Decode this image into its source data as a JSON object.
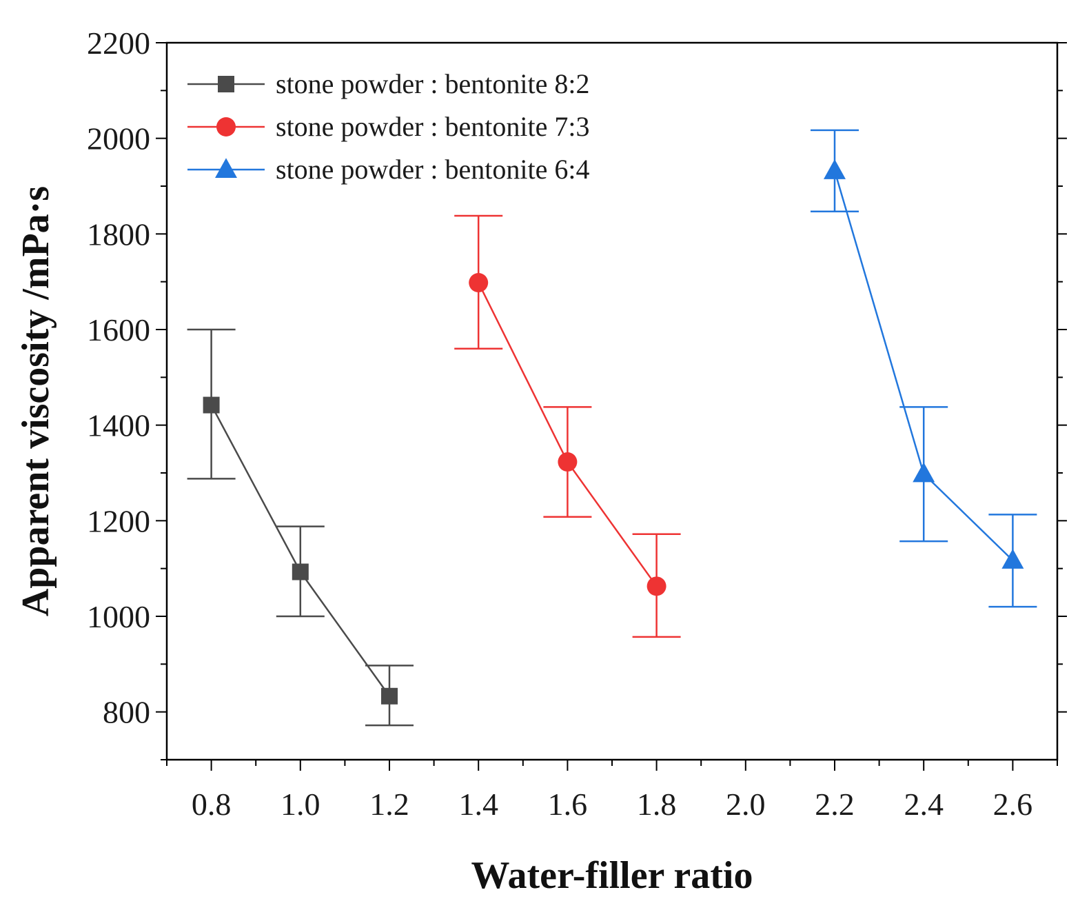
{
  "chart_data": {
    "type": "line",
    "title": "",
    "xlabel": "Water-filler ratio",
    "ylabel": "Apparent viscosity /mPa·s",
    "xlim": [
      0.7,
      2.7
    ],
    "ylim": [
      700,
      2200
    ],
    "x_ticks": [
      "0.8",
      "1.0",
      "1.2",
      "1.4",
      "1.6",
      "1.8",
      "2.0",
      "2.2",
      "2.4",
      "2.6"
    ],
    "y_ticks": [
      "800",
      "1000",
      "1200",
      "1400",
      "1600",
      "1800",
      "2000",
      "2200"
    ],
    "x_tick_values": [
      0.8,
      1.0,
      1.2,
      1.4,
      1.6,
      1.8,
      2.0,
      2.2,
      2.4,
      2.6
    ],
    "y_tick_values": [
      800,
      1000,
      1200,
      1400,
      1600,
      1800,
      2000,
      2200
    ],
    "legend_position": "top-left",
    "series": [
      {
        "name": "stone powder : bentonite 8:2",
        "color": "#4a4a4a",
        "marker": "square",
        "x": [
          0.8,
          1.0,
          1.2
        ],
        "values": [
          1442,
          1093,
          833
        ],
        "error_low": [
          1288,
          1000,
          772
        ],
        "error_high": [
          1600,
          1188,
          897
        ]
      },
      {
        "name": "stone powder : bentonite 7:3",
        "color": "#ee3333",
        "marker": "circle",
        "x": [
          1.4,
          1.6,
          1.8
        ],
        "values": [
          1698,
          1323,
          1063
        ],
        "error_low": [
          1560,
          1208,
          957
        ],
        "error_high": [
          1838,
          1438,
          1172
        ]
      },
      {
        "name": "stone powder : bentonite 6:4",
        "color": "#2277dd",
        "marker": "triangle",
        "x": [
          2.2,
          2.4,
          2.6
        ],
        "values": [
          1932,
          1298,
          1117
        ],
        "error_low": [
          1847,
          1157,
          1020
        ],
        "error_high": [
          2017,
          1438,
          1213
        ]
      }
    ]
  }
}
